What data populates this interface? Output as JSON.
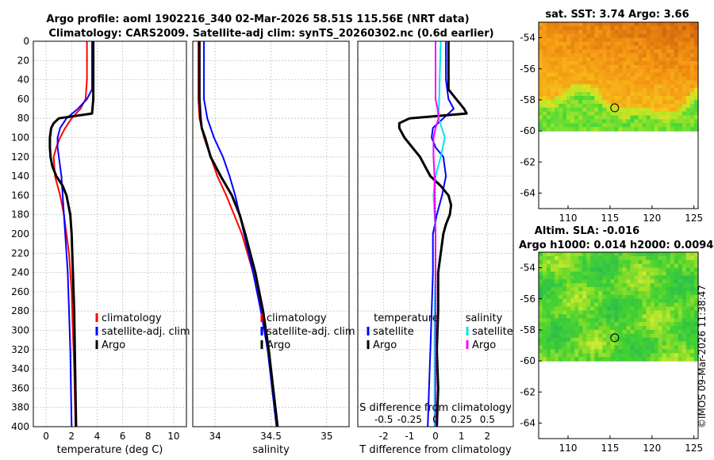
{
  "header": {
    "title_line1": "Argo profile: aoml 1902216_340 02-Mar-2026 58.51S 115.56E (NRT data)",
    "title_line2": "Climatology: CARS2009. Satellite-adj clim: synTS_20260302.nc (0.6d earlier)"
  },
  "watermark": "©IMOS 09-Mar-2026 11:38:47",
  "colors": {
    "climatology": "#ff0000",
    "satellite": "#0000ff",
    "argo": "#000000",
    "sat_salinity": "#00e5ee",
    "argo_salinity": "#ff00ff"
  },
  "chart_data": [
    {
      "id": "temperature",
      "type": "line",
      "xlabel": "temperature (deg C)",
      "xlim": [
        -1,
        11
      ],
      "xticks": [
        0,
        2,
        4,
        6,
        8,
        10
      ],
      "xtick_labels": [
        "0",
        "2",
        "4",
        "6",
        "8",
        "10"
      ],
      "ylim": [
        400,
        0
      ],
      "yticks": [
        0,
        20,
        40,
        60,
        80,
        100,
        120,
        140,
        160,
        180,
        200,
        220,
        240,
        260,
        280,
        300,
        320,
        340,
        360,
        380,
        400
      ],
      "legend": [
        "climatology",
        "satellite-adj. clim",
        "Argo"
      ],
      "series": [
        {
          "name": "climatology",
          "color": "#ff0000",
          "depth": [
            0,
            40,
            60,
            70,
            80,
            90,
            100,
            110,
            120,
            140,
            160,
            180,
            200,
            220,
            260,
            300,
            340,
            400
          ],
          "values": [
            3.2,
            3.2,
            3.1,
            2.7,
            2.0,
            1.5,
            1.1,
            0.8,
            0.6,
            0.7,
            1.1,
            1.4,
            1.6,
            1.8,
            2.0,
            2.1,
            2.2,
            2.3
          ]
        },
        {
          "name": "satellite-adj. clim",
          "color": "#0000ff",
          "depth": [
            0,
            50,
            60,
            70,
            80,
            90,
            100,
            110,
            120,
            140,
            160,
            180,
            200,
            240,
            280,
            320,
            360,
            400
          ],
          "values": [
            3.6,
            3.6,
            3.2,
            2.5,
            1.6,
            1.1,
            0.9,
            0.9,
            1.0,
            1.2,
            1.3,
            1.4,
            1.5,
            1.7,
            1.8,
            1.9,
            1.95,
            2.0
          ]
        },
        {
          "name": "Argo",
          "color": "#000000",
          "depth": [
            0,
            50,
            60,
            75,
            80,
            85,
            90,
            100,
            110,
            120,
            130,
            140,
            150,
            160,
            180,
            200,
            240,
            280,
            320,
            360,
            400
          ],
          "values": [
            3.7,
            3.7,
            3.7,
            3.6,
            1.0,
            0.6,
            0.4,
            0.3,
            0.3,
            0.35,
            0.5,
            0.8,
            1.3,
            1.6,
            1.9,
            2.0,
            2.1,
            2.2,
            2.25,
            2.3,
            2.35
          ]
        }
      ]
    },
    {
      "id": "salinity",
      "type": "line",
      "xlabel": "salinity",
      "xlim": [
        33.8,
        35.2
      ],
      "xticks": [
        34,
        34.5,
        35
      ],
      "xtick_labels": [
        "34",
        "34.5",
        "35"
      ],
      "ylim": [
        400,
        0
      ],
      "legend": [
        "climatology",
        "satellite-adj. clim",
        "Argo"
      ],
      "series": [
        {
          "name": "climatology",
          "color": "#ff0000",
          "depth": [
            0,
            60,
            80,
            100,
            120,
            140,
            160,
            180,
            200,
            240,
            280,
            320,
            360,
            400
          ],
          "values": [
            33.85,
            33.85,
            33.86,
            33.9,
            33.96,
            34.02,
            34.1,
            34.17,
            34.24,
            34.34,
            34.42,
            34.48,
            34.52,
            34.56
          ]
        },
        {
          "name": "satellite-adj. clim",
          "color": "#0000ff",
          "depth": [
            0,
            60,
            80,
            100,
            120,
            140,
            160,
            180,
            200,
            240,
            280,
            320,
            360,
            400
          ],
          "values": [
            33.9,
            33.9,
            33.93,
            33.99,
            34.07,
            34.13,
            34.18,
            34.22,
            34.26,
            34.34,
            34.41,
            34.47,
            34.51,
            34.55
          ]
        },
        {
          "name": "Argo",
          "color": "#000000",
          "depth": [
            0,
            60,
            80,
            90,
            100,
            120,
            140,
            160,
            180,
            200,
            240,
            280,
            320,
            360,
            400
          ],
          "values": [
            33.86,
            33.86,
            33.87,
            33.88,
            33.91,
            33.96,
            34.05,
            34.15,
            34.22,
            34.27,
            34.36,
            34.43,
            34.48,
            34.52,
            34.56
          ]
        }
      ]
    },
    {
      "id": "differences",
      "type": "line",
      "xlabel": "T difference from climatology",
      "xlim": [
        -3,
        3
      ],
      "xticks": [
        -2,
        -1,
        0,
        1,
        2
      ],
      "xtick_labels": [
        "-2",
        "-1",
        "0",
        "1",
        "2"
      ],
      "top_axis_label": "S difference from climatology",
      "top_ticks": [
        -0.5,
        -0.25,
        0,
        0.25,
        0.5
      ],
      "top_tick_labels": [
        "-0.5",
        "-0.25",
        "0",
        "0.25",
        "0.5"
      ],
      "ylim": [
        400,
        0
      ],
      "legend_temperature_title": "temperature",
      "legend_salinity_title": "salinity",
      "legend_labels": [
        "satellite",
        "Argo",
        "satellite",
        "Argo"
      ],
      "series": [
        {
          "name": "T satellite",
          "color": "#0000ff",
          "depth": [
            0,
            40,
            60,
            70,
            80,
            90,
            100,
            110,
            120,
            140,
            160,
            180,
            200,
            240,
            280,
            320,
            360,
            400
          ],
          "values": [
            0.4,
            0.4,
            0.5,
            0.7,
            0.3,
            -0.1,
            -0.15,
            0.0,
            0.3,
            0.4,
            0.25,
            0.05,
            -0.1,
            -0.1,
            -0.15,
            -0.2,
            -0.25,
            -0.3
          ]
        },
        {
          "name": "T Argo",
          "color": "#000000",
          "depth": [
            0,
            50,
            60,
            70,
            75,
            80,
            85,
            90,
            100,
            110,
            120,
            130,
            140,
            150,
            160,
            170,
            180,
            190,
            200,
            240,
            280,
            320,
            360,
            400
          ],
          "values": [
            0.5,
            0.5,
            0.8,
            1.1,
            1.2,
            -1.0,
            -1.4,
            -1.4,
            -1.2,
            -0.9,
            -0.6,
            -0.4,
            -0.2,
            0.2,
            0.5,
            0.6,
            0.55,
            0.4,
            0.3,
            0.1,
            0.1,
            0.05,
            0.1,
            0.05
          ]
        },
        {
          "name": "S satellite",
          "color": "#00e5ee",
          "depth": [
            0,
            80,
            100,
            120,
            140,
            160,
            180,
            200,
            240,
            280,
            320,
            360,
            400
          ],
          "values": [
            0.05,
            0.03,
            0.09,
            0.05,
            0.0,
            -0.02,
            -0.01,
            0.0,
            0.0,
            -0.01,
            -0.01,
            -0.01,
            -0.01
          ]
        },
        {
          "name": "S Argo",
          "color": "#ff00ff",
          "depth": [
            0,
            60,
            70,
            80,
            90,
            100,
            120,
            140,
            160,
            200,
            240,
            280,
            320,
            360,
            400
          ],
          "values": [
            0.0,
            0.0,
            0.02,
            0.03,
            0.0,
            -0.02,
            -0.02,
            -0.01,
            -0.01,
            0.0,
            0.0,
            0.0,
            0.0,
            0.0,
            0.0
          ]
        }
      ]
    },
    {
      "id": "sst_map",
      "type": "heatmap",
      "title": "sat. SST: 3.74 Argo: 3.66",
      "xlim": [
        106.5,
        125.5
      ],
      "ylim": [
        -65,
        -53
      ],
      "xticks": [
        110,
        115,
        120,
        125
      ],
      "xtick_labels": [
        "110",
        "115",
        "120",
        "125"
      ],
      "yticks": [
        -54,
        -56,
        -58,
        -60,
        -62,
        -64
      ],
      "ytick_labels": [
        "-54",
        "-56",
        "-58",
        "-60",
        "-62",
        "-64"
      ],
      "data_lat_range": [
        -60,
        -53
      ],
      "marker": {
        "lon": 115.56,
        "lat": -58.51
      }
    },
    {
      "id": "sla_map",
      "type": "heatmap",
      "title_line1": "Altim. SLA: -0.016",
      "title_line2": "Argo h1000: 0.014 h2000: 0.0094",
      "xlim": [
        106.5,
        125.5
      ],
      "ylim": [
        -65,
        -53
      ],
      "xticks": [
        110,
        115,
        120,
        125
      ],
      "xtick_labels": [
        "110",
        "115",
        "120",
        "125"
      ],
      "yticks": [
        -54,
        -56,
        -58,
        -60,
        -62,
        -64
      ],
      "ytick_labels": [
        "-54",
        "-56",
        "-58",
        "-60",
        "-62",
        "-64"
      ],
      "data_lat_range": [
        -60,
        -53
      ],
      "marker": {
        "lon": 115.56,
        "lat": -58.51
      }
    }
  ]
}
